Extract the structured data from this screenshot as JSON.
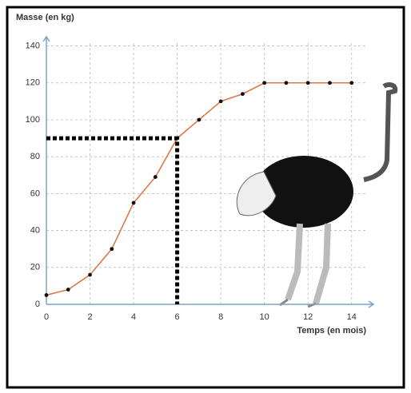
{
  "chart_data": {
    "type": "line",
    "y_label": "Masse (en kg)",
    "x_label": "Temps (en mois)",
    "x": [
      0,
      1,
      2,
      3,
      4,
      5,
      6,
      7,
      8,
      9,
      10,
      11,
      12,
      13,
      14
    ],
    "series": [
      {
        "color": "#d9794b",
        "values": [
          5,
          8,
          16,
          30,
          55,
          69,
          90,
          100,
          110,
          114,
          120,
          120,
          120,
          120,
          120
        ]
      }
    ],
    "xlim": [
      0,
      15
    ],
    "ylim": [
      0,
      145
    ],
    "xticks": [
      0,
      2,
      4,
      6,
      8,
      10,
      12,
      14
    ],
    "yticks": [
      0,
      20,
      40,
      60,
      80,
      100,
      120,
      140
    ],
    "grid": true,
    "guide": {
      "x": 6,
      "y": 90
    }
  }
}
